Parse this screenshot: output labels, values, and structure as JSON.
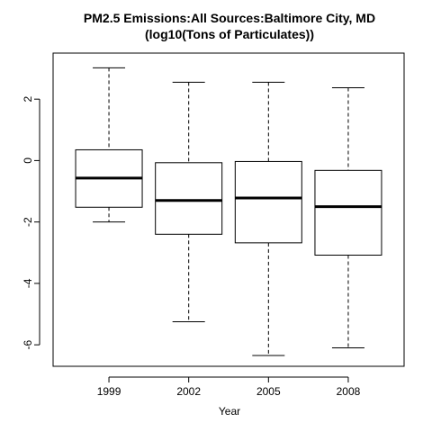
{
  "chart_data": {
    "type": "boxplot",
    "title": "PM2.5 Emissions:All Sources:Baltimore City, MD",
    "subtitle": "(log10(Tons of Particulates))",
    "xlabel": "Year",
    "ylabel": "",
    "categories": [
      "1999",
      "2002",
      "2005",
      "2008"
    ],
    "ylim": [
      -6.7,
      3.5
    ],
    "yticks": [
      -6,
      -4,
      -2,
      0,
      2
    ],
    "ytick_labels": [
      "-6",
      "-4",
      "-2",
      "0",
      "2"
    ],
    "grid": false,
    "legend": "none",
    "boxes": [
      {
        "category": "1999",
        "min": -2.0,
        "q1": -1.52,
        "median": -0.57,
        "q3": 0.35,
        "max": 3.02
      },
      {
        "category": "2002",
        "min": -5.25,
        "q1": -2.4,
        "median": -1.3,
        "q3": -0.07,
        "max": 2.55
      },
      {
        "category": "2005",
        "min": -6.35,
        "q1": -2.68,
        "median": -1.22,
        "q3": -0.03,
        "max": 2.55
      },
      {
        "category": "2008",
        "min": -6.1,
        "q1": -3.08,
        "median": -1.5,
        "q3": -0.32,
        "max": 2.37
      }
    ],
    "colors": {
      "box_fill": "#ffffff",
      "stroke": "#000000"
    }
  }
}
